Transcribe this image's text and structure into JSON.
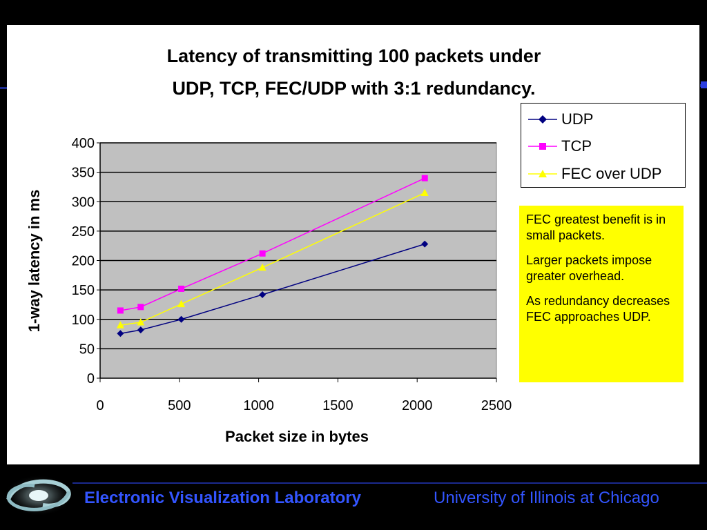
{
  "chart_data": {
    "type": "line",
    "title": [
      "Latency of transmitting 100 packets under",
      "UDP, TCP, FEC/UDP with 3:1 redundancy."
    ],
    "xlabel": "Packet size in bytes",
    "ylabel": "1-way latency in ms",
    "xlim": [
      0,
      2500
    ],
    "ylim": [
      0,
      400
    ],
    "xticks": [
      0,
      500,
      1000,
      1500,
      2000,
      2500
    ],
    "yticks": [
      0,
      50,
      100,
      150,
      200,
      250,
      300,
      350,
      400
    ],
    "grid": "horizontal",
    "legend_position": "top-right",
    "plot_background": "#c0c0c0",
    "series": [
      {
        "name": "UDP",
        "color": "#000080",
        "marker": "diamond",
        "points": [
          [
            128,
            76
          ],
          [
            256,
            82
          ],
          [
            512,
            100
          ],
          [
            1024,
            142
          ],
          [
            2048,
            228
          ]
        ]
      },
      {
        "name": "TCP",
        "color": "#ff00ff",
        "marker": "square",
        "points": [
          [
            128,
            115
          ],
          [
            256,
            121
          ],
          [
            512,
            152
          ],
          [
            1024,
            212
          ],
          [
            2048,
            340
          ]
        ]
      },
      {
        "name": "FEC over UDP",
        "color": "#ffff00",
        "marker": "triangle",
        "points": [
          [
            128,
            90
          ],
          [
            256,
            95
          ],
          [
            512,
            126
          ],
          [
            1024,
            188
          ],
          [
            2048,
            315
          ]
        ]
      }
    ]
  },
  "notes": [
    "FEC greatest benefit is in small packets.",
    "Larger packets impose greater overhead.",
    "As redundancy decreases FEC approaches UDP."
  ],
  "footer": {
    "lab": "Electronic Visualization Laboratory",
    "university": "University of Illinois at Chicago",
    "logo_icon": "galaxy-swirl-icon"
  }
}
